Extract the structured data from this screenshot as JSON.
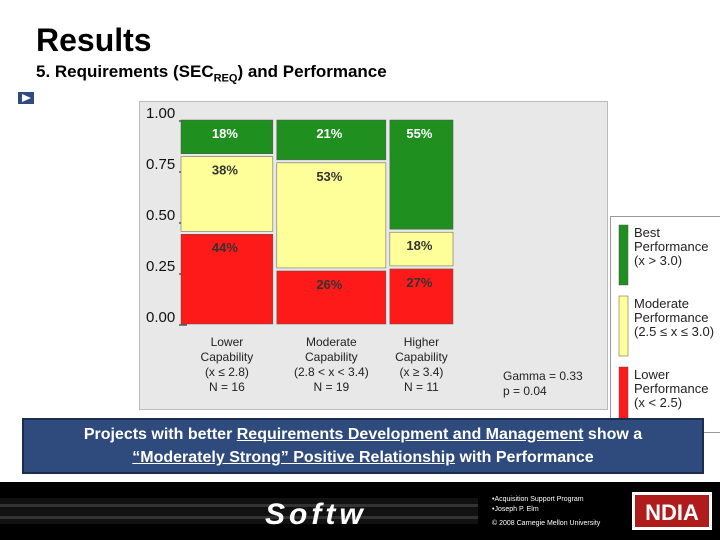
{
  "slide": {
    "title": "Results",
    "subtitle_pre": "5. Requirements (SEC",
    "subtitle_sub": "REQ",
    "subtitle_post": ") and Performance"
  },
  "chart_data": {
    "type": "mosaic",
    "y_ticks": [
      "1.00",
      "0.75",
      "0.50",
      "0.25",
      "0.00"
    ],
    "columns": [
      {
        "label_lines": [
          "Lower",
          "Capability",
          "(x ≤ 2.8)",
          "N = 16"
        ],
        "n": 16,
        "segments": [
          {
            "level": "best",
            "pct": "18%",
            "value": 0.18
          },
          {
            "level": "moderate",
            "pct": "38%",
            "value": 0.38
          },
          {
            "level": "lower",
            "pct": "44%",
            "value": 0.44
          }
        ]
      },
      {
        "label_lines": [
          "Moderate",
          "Capability",
          "(2.8 < x < 3.4)",
          "N = 19"
        ],
        "n": 19,
        "segments": [
          {
            "level": "best",
            "pct": "21%",
            "value": 0.21
          },
          {
            "level": "moderate",
            "pct": "53%",
            "value": 0.53
          },
          {
            "level": "lower",
            "pct": "26%",
            "value": 0.26
          }
        ]
      },
      {
        "label_lines": [
          "Higher",
          "Capability",
          "(x ≥ 3.4)",
          "N = 11"
        ],
        "n": 11,
        "segments": [
          {
            "level": "best",
            "pct": "55%",
            "value": 0.55
          },
          {
            "level": "moderate",
            "pct": "18%",
            "value": 0.18
          },
          {
            "level": "lower",
            "pct": "27%",
            "value": 0.27
          }
        ]
      }
    ],
    "legend": [
      {
        "level": "best",
        "lines": [
          "Best",
          "Performance",
          "(x > 3.0)"
        ],
        "color": "#1f8f1f"
      },
      {
        "level": "moderate",
        "lines": [
          "Moderate",
          "Performance",
          "(2.5 ≤ x ≤ 3.0)"
        ],
        "color": "#ffff99"
      },
      {
        "level": "lower",
        "lines": [
          "Lower",
          "Performance",
          "(x < 2.5)"
        ],
        "color": "#ff1a1a"
      }
    ],
    "stats": {
      "gamma": "Gamma = 0.33",
      "p": "p = 0.04"
    },
    "colors": {
      "best": "#1f8f1f",
      "moderate": "#ffff99",
      "lower": "#ff1a1a",
      "best_text": "#ffffff",
      "other_text": "#333333"
    }
  },
  "caption": {
    "line1_pre": "Projects with better ",
    "line1_link": "Requirements Development and Management",
    "line1_post": " show a",
    "line2_link": "“Moderately Strong” Positive Relationship",
    "line2_post": " with  Performance"
  },
  "footer": {
    "banner_text": "Softw",
    "line1": "•Acquisition Support Program",
    "line2": "•Joseph P. Elm",
    "line3": "© 2008 Carnegie Mellon University",
    "logo_text": "NDIA"
  }
}
